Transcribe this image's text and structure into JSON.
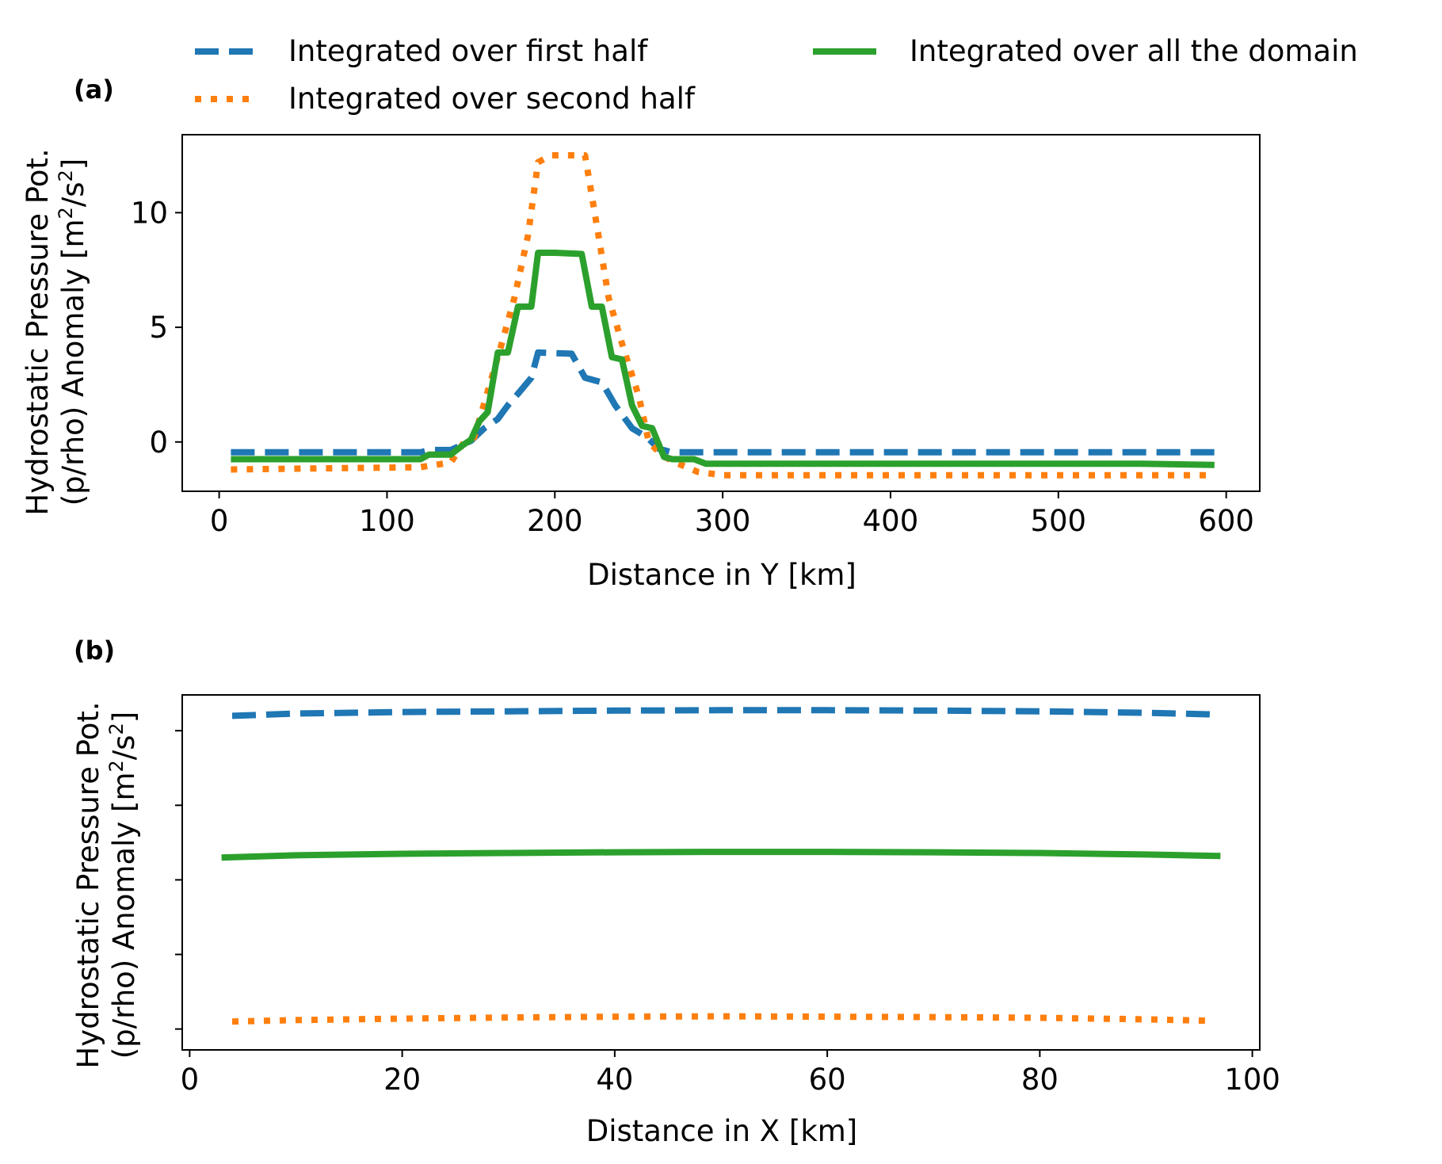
{
  "colors": {
    "first_half": "#1f77b4",
    "second_half": "#ff7f0e",
    "all_domain": "#2ca02c"
  },
  "legend": {
    "first_half": "Integrated over first half",
    "second_half": "Integrated over second half",
    "all_domain": "Integrated over all the domain"
  },
  "chart_data": [
    {
      "type": "line",
      "panel": "(a)",
      "xlabel": "Distance in Y [km]",
      "ylabel_line1": "Hydrostatic Pressure Pot.",
      "ylabel_line2_prefix": "(p/rho) Anomaly [m",
      "ylabel_sup1": "2",
      "ylabel_mid": "/s",
      "ylabel_sup2": "2",
      "ylabel_suffix": "]",
      "xlim": [
        -22,
        620
      ],
      "ylim": [
        -2.15,
        13.4
      ],
      "x_ticks": [
        0,
        100,
        200,
        300,
        400,
        500,
        600
      ],
      "x_tick_labels": [
        "0",
        "100",
        "200",
        "300",
        "400",
        "500",
        "600"
      ],
      "y_ticks": [
        0,
        5,
        10
      ],
      "y_tick_labels": [
        "0",
        "5",
        "10"
      ],
      "grid": false,
      "legend_placement": "above",
      "series": [
        {
          "key": "first_half",
          "style": "dashed",
          "x": [
            7,
            120,
            125,
            138,
            150,
            158,
            166,
            172,
            178,
            186,
            190,
            210,
            218,
            228,
            236,
            246,
            255,
            262,
            270,
            280,
            290,
            350,
            400,
            500,
            593
          ],
          "y": [
            -0.45,
            -0.45,
            -0.35,
            -0.35,
            0.05,
            0.6,
            1.0,
            1.6,
            2.1,
            2.8,
            3.9,
            3.85,
            2.8,
            2.6,
            1.6,
            0.6,
            0.2,
            -0.3,
            -0.45,
            -0.45,
            -0.45,
            -0.45,
            -0.45,
            -0.45,
            -0.45
          ]
        },
        {
          "key": "second_half",
          "style": "dotted",
          "x": [
            7,
            120,
            124,
            138,
            146,
            152,
            160,
            168,
            176,
            184,
            190,
            198,
            210,
            218,
            226,
            232,
            240,
            250,
            256,
            264,
            272,
            285,
            300,
            400,
            500,
            593
          ],
          "y": [
            -1.2,
            -1.1,
            -1.05,
            -0.9,
            0.0,
            0.2,
            2.2,
            4.2,
            6.3,
            9.0,
            12.2,
            12.5,
            12.5,
            12.5,
            9.0,
            6.3,
            4.3,
            2.0,
            0.0,
            -0.6,
            -0.9,
            -1.3,
            -1.45,
            -1.45,
            -1.45,
            -1.45
          ]
        },
        {
          "key": "all_domain",
          "style": "solid",
          "x": [
            7,
            120,
            125,
            138,
            145,
            150,
            155,
            160,
            166,
            172,
            178,
            186,
            190,
            200,
            216,
            222,
            228,
            234,
            240,
            246,
            252,
            258,
            265,
            270,
            283,
            290,
            400,
            500,
            550,
            593
          ],
          "y": [
            -0.75,
            -0.75,
            -0.55,
            -0.55,
            -0.15,
            0.1,
            0.9,
            1.3,
            3.9,
            3.9,
            5.9,
            5.9,
            8.25,
            8.25,
            8.2,
            5.9,
            5.9,
            3.7,
            3.6,
            1.6,
            0.7,
            0.6,
            -0.65,
            -0.75,
            -0.75,
            -0.95,
            -0.95,
            -0.95,
            -0.95,
            -1.0
          ]
        }
      ]
    },
    {
      "type": "line",
      "panel": "(b)",
      "xlabel": "Distance in X [km]",
      "ylabel_line1": "Hydrostatic Pressure Pot.",
      "ylabel_line2_prefix": "(p/rho) Anomaly [m",
      "ylabel_sup1": "2",
      "ylabel_mid": "/s",
      "ylabel_sup2": "2",
      "ylabel_suffix": "]",
      "xlim": [
        -0.7,
        100.7
      ],
      "ylim": [
        -0.28,
        4.48
      ],
      "x_ticks": [
        0,
        20,
        40,
        60,
        80,
        100
      ],
      "x_tick_labels": [
        "0",
        "20",
        "40",
        "60",
        "80",
        "100"
      ],
      "y_ticks": [
        0,
        1,
        2,
        3,
        4
      ],
      "y_tick_labels": [
        "",
        "",
        "",
        "",
        ""
      ],
      "grid": false,
      "series": [
        {
          "key": "first_half",
          "style": "dashed",
          "x": [
            4,
            10,
            20,
            30,
            40,
            50,
            60,
            70,
            80,
            90,
            96
          ],
          "y": [
            4.2,
            4.23,
            4.25,
            4.26,
            4.27,
            4.275,
            4.275,
            4.27,
            4.26,
            4.24,
            4.22
          ]
        },
        {
          "key": "second_half",
          "style": "dotted",
          "x": [
            4,
            10,
            20,
            30,
            40,
            50,
            60,
            70,
            80,
            90,
            96
          ],
          "y": [
            0.1,
            0.12,
            0.14,
            0.155,
            0.165,
            0.17,
            0.165,
            0.16,
            0.15,
            0.13,
            0.11
          ]
        },
        {
          "key": "all_domain",
          "style": "solid",
          "x": [
            3,
            10,
            20,
            30,
            40,
            50,
            60,
            70,
            80,
            90,
            97
          ],
          "y": [
            2.3,
            2.33,
            2.35,
            2.36,
            2.37,
            2.375,
            2.375,
            2.37,
            2.36,
            2.34,
            2.32
          ]
        }
      ]
    }
  ]
}
